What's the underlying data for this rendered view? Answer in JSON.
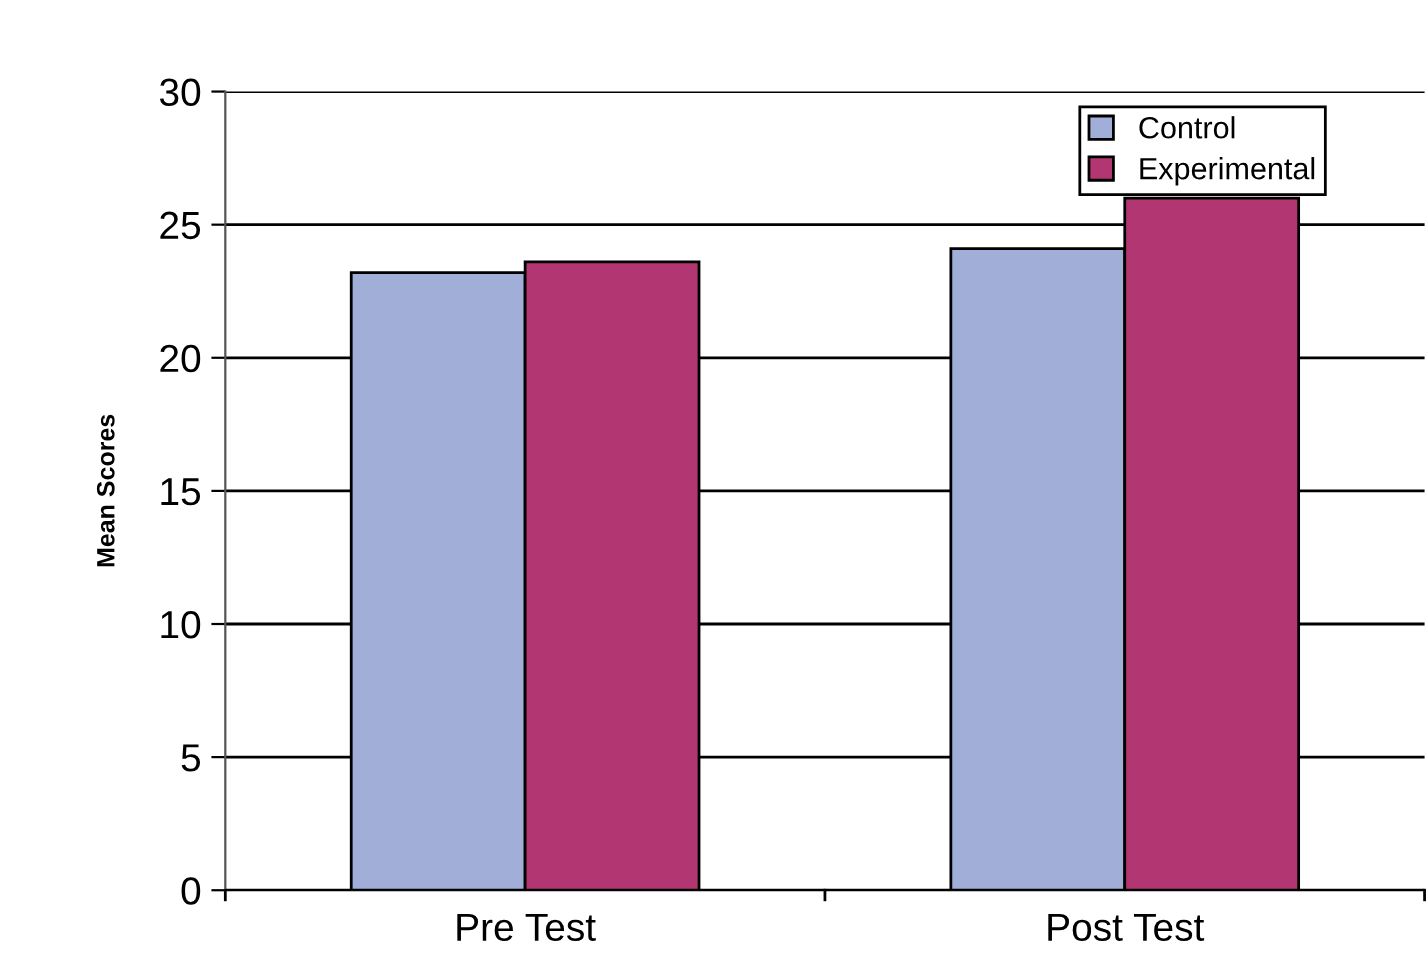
{
  "chart_data": {
    "type": "bar",
    "ylabel": "Mean Scores",
    "categories": [
      "Pre Test",
      "Post Test"
    ],
    "series": [
      {
        "name": "Control",
        "color": "#a1aed8",
        "values": [
          23.2,
          24.1
        ]
      },
      {
        "name": "Experimental",
        "color": "#b23671",
        "values": [
          23.6,
          26
        ]
      }
    ],
    "ylim": [
      0,
      30
    ],
    "yticks": [
      0,
      5,
      10,
      15,
      20,
      25,
      30
    ],
    "grid": "y",
    "legend": "top right"
  }
}
